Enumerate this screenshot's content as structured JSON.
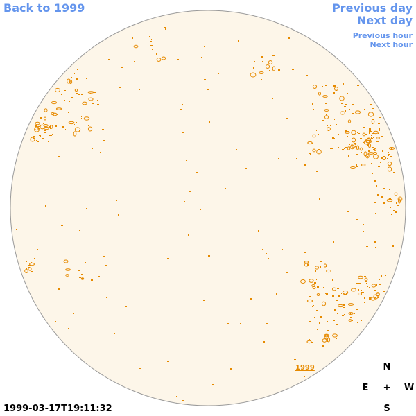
{
  "navigation": {
    "back_label": "Back to 1999",
    "previous_day_label": "Previous day",
    "next_day_label": "Next day",
    "previous_hour_label": "Previous hour",
    "next_hour_label": "Next hour"
  },
  "solar_disk": {
    "year_marker": "1999",
    "disk_color": "#fdf6e9",
    "limb_color": "#999999",
    "contour_color": "#e68a00"
  },
  "compass": {
    "north": "N",
    "east": "E",
    "center": "+",
    "west": "W",
    "south": "S"
  },
  "timestamp": "1999-03-17T19:11:32"
}
